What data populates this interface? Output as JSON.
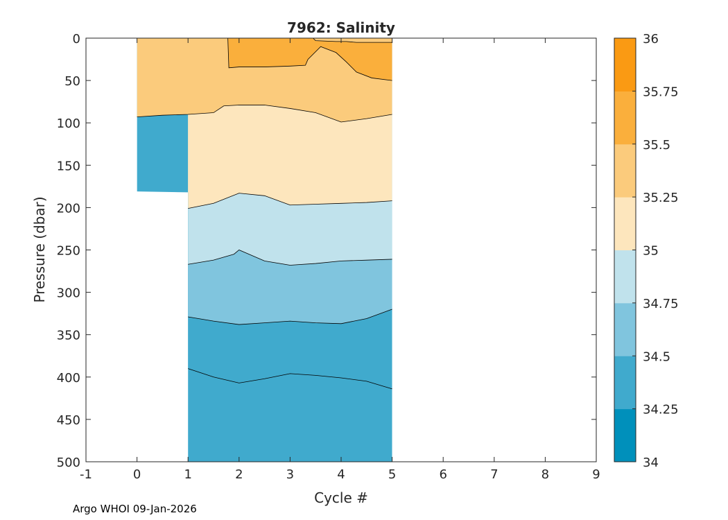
{
  "chart_data": {
    "type": "contour",
    "title": "7962:  Salinity",
    "xlabel": "Cycle #",
    "ylabel": "Pressure (dbar)",
    "xlim": [
      -1,
      9
    ],
    "ylim": [
      0,
      500
    ],
    "y_reversed": true,
    "xticks": [
      "-1",
      "0",
      "1",
      "2",
      "3",
      "4",
      "5",
      "6",
      "7",
      "8",
      "9"
    ],
    "yticks": [
      "0",
      "50",
      "100",
      "150",
      "200",
      "250",
      "300",
      "350",
      "400",
      "450",
      "500"
    ],
    "colorbar": {
      "range": [
        34,
        36
      ],
      "levels": [
        34,
        34.25,
        34.5,
        34.75,
        35,
        35.25,
        35.5,
        35.75,
        36
      ],
      "tick_labels": [
        "36",
        "35.75",
        "35.5",
        "35.25",
        "35",
        "34.75",
        "34.5",
        "34.25",
        "34"
      ],
      "colors": [
        "#0090bb",
        "#40aacd",
        "#80c5de",
        "#c0e2ec",
        "#fde6bd",
        "#fbcb7c",
        "#faaf3c",
        "#fa9a13"
      ]
    },
    "data_extent": [
      {
        "cycle": 0,
        "max_pressure": 182
      },
      {
        "cycle": 1,
        "max_pressure": 500
      },
      {
        "cycle": 5,
        "max_pressure": 500
      }
    ],
    "contours": [
      {
        "level": 35.5,
        "x": [
          1.78,
          1.8,
          2,
          2.5,
          3,
          3.3,
          3.35,
          3.6,
          3.9,
          4.1,
          4.3,
          4.6,
          5
        ],
        "y": [
          0,
          35,
          34,
          34,
          33,
          32,
          25,
          10,
          17,
          28,
          40,
          47,
          50
        ]
      },
      {
        "level": 35.5,
        "x": [
          3.45,
          3.5,
          3.9,
          4.1,
          4.3,
          4.6,
          5
        ],
        "y": [
          0,
          3,
          4,
          4,
          5,
          5,
          5
        ],
        "fill_above": 35.25
      },
      {
        "level": 35.25,
        "x": [
          0,
          0.5,
          1,
          1.5,
          1.7,
          2,
          2.5,
          3,
          3.5,
          4,
          4.5,
          5
        ],
        "y": [
          93,
          91,
          90,
          88,
          80,
          79,
          79,
          83,
          88,
          99,
          95,
          90
        ]
      },
      {
        "level": 35.0,
        "x": [
          1,
          1.5,
          2,
          2.5,
          3,
          3.5,
          4,
          4.5,
          5
        ],
        "y": [
          201,
          195,
          183,
          186,
          197,
          196,
          195,
          194,
          192
        ]
      },
      {
        "level": 34.75,
        "x": [
          1,
          1.5,
          1.9,
          2,
          2.5,
          3,
          3.5,
          4,
          4.5,
          5
        ],
        "y": [
          267,
          262,
          255,
          250,
          263,
          268,
          266,
          263,
          262,
          261
        ]
      },
      {
        "level": 34.5,
        "x": [
          1,
          1.5,
          2,
          2.5,
          3,
          3.5,
          4,
          4.5,
          5
        ],
        "y": [
          329,
          334,
          338,
          336,
          334,
          336,
          337,
          331,
          320
        ]
      },
      {
        "level": 34.25,
        "x": [
          1,
          1.5,
          2,
          2.5,
          3,
          3.5,
          4,
          4.5,
          5
        ],
        "y": [
          390,
          400,
          407,
          402,
          396,
          398,
          401,
          405,
          414
        ]
      }
    ]
  },
  "footer": "Argo WHOI 09-Jan-2026"
}
